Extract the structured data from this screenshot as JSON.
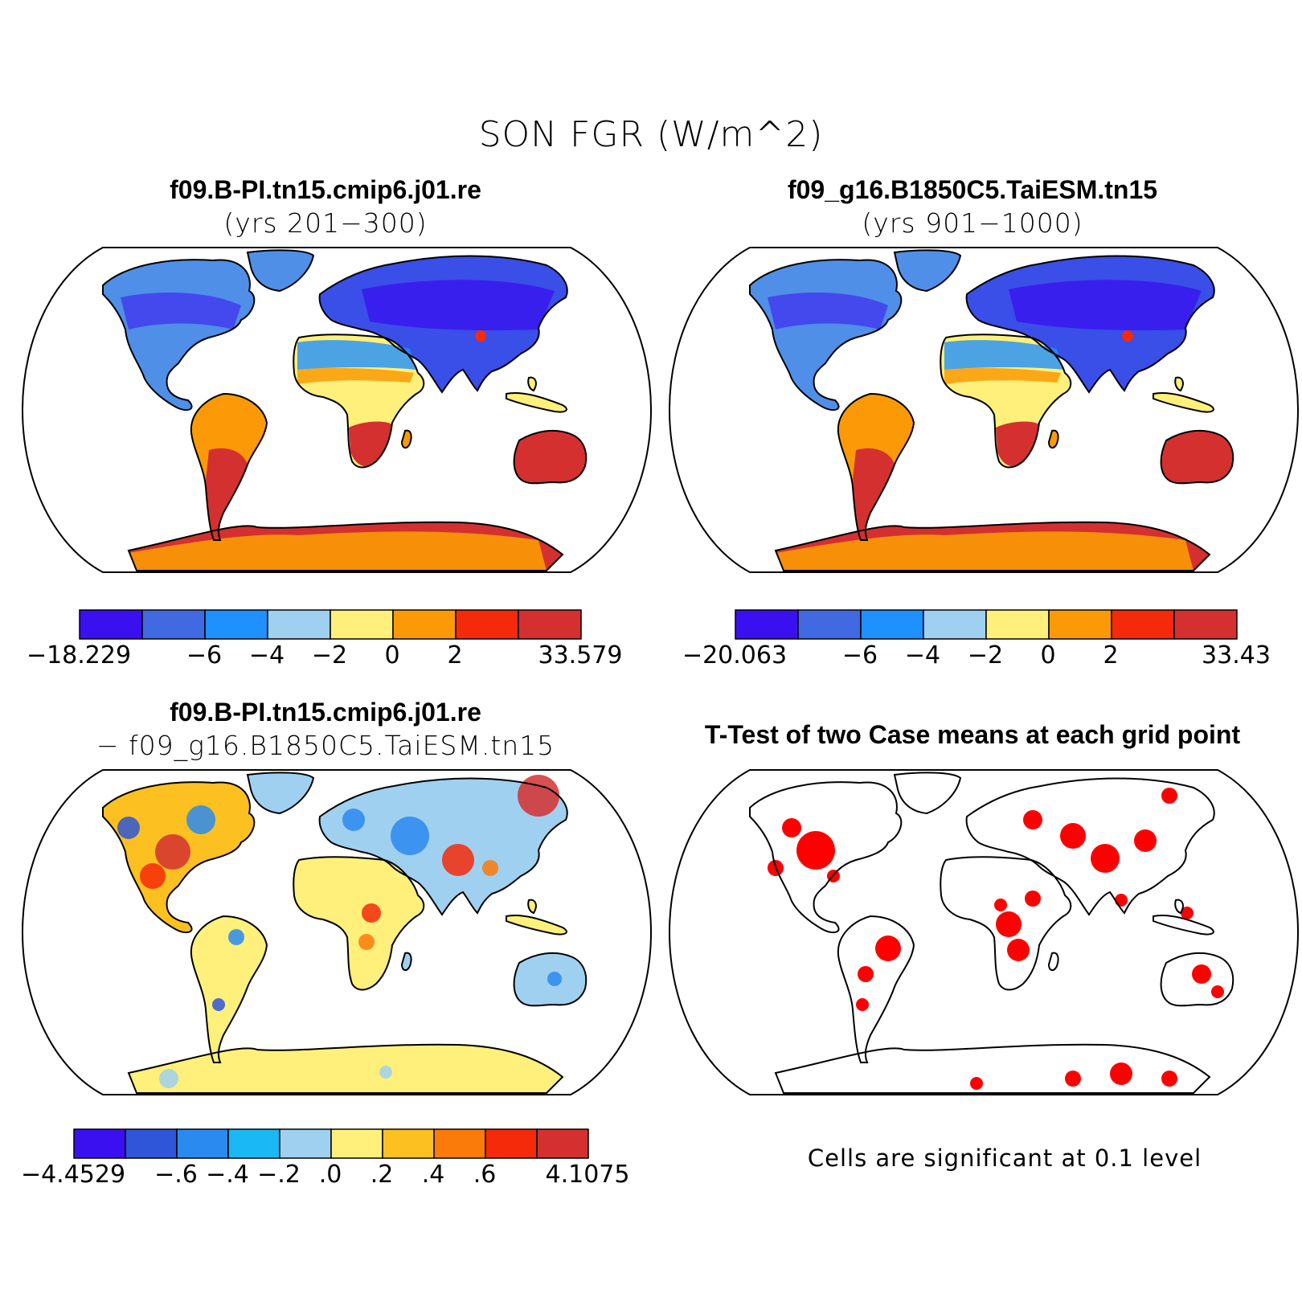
{
  "main_title": "SON FGR (W/m^2)",
  "panels": [
    {
      "id": "case1",
      "title": "f09.B-PI.tn15.cmip6.j01.re",
      "subtitle": "(yrs 201−300)",
      "colorbar": {
        "colors": [
          "#3a10f0",
          "#4169e1",
          "#1e90ff",
          "#9fd0f0",
          "#fef07a",
          "#fb9a06",
          "#f52a0a",
          "#d43030"
        ],
        "labels": [
          "−18.229",
          "−6",
          "−4",
          "−2",
          "0",
          "2",
          "33.579"
        ]
      }
    },
    {
      "id": "case2",
      "title": "f09_g16.B1850C5.TaiESM.tn15",
      "subtitle": "(yrs 901−1000)",
      "colorbar": {
        "colors": [
          "#3a10f0",
          "#4169e1",
          "#1e90ff",
          "#9fd0f0",
          "#fef07a",
          "#fb9a06",
          "#f52a0a",
          "#d43030"
        ],
        "labels": [
          "−20.063",
          "−6",
          "−4",
          "−2",
          "0",
          "2",
          "33.43"
        ]
      }
    },
    {
      "id": "diff",
      "title": "f09.B-PI.tn15.cmip6.j01.re",
      "subtitle": "− f09_g16.B1850C5.TaiESM.tn15",
      "colorbar": {
        "colors": [
          "#3a10f0",
          "#2f55d8",
          "#2a8af0",
          "#1ab8f5",
          "#9fd0f0",
          "#fef07a",
          "#fcc020",
          "#fa7a0a",
          "#f52a0a",
          "#d43030"
        ],
        "labels": [
          "−4.4529",
          "−.6",
          "−.4",
          "−.2",
          ".0",
          ".2",
          ".4",
          ".6",
          "4.1075"
        ]
      }
    },
    {
      "id": "ttest",
      "title": "T-Test of two Case means at each grid point",
      "note": "Cells are significant at 0.1 level",
      "sig_color": "#ff0000"
    }
  ]
}
